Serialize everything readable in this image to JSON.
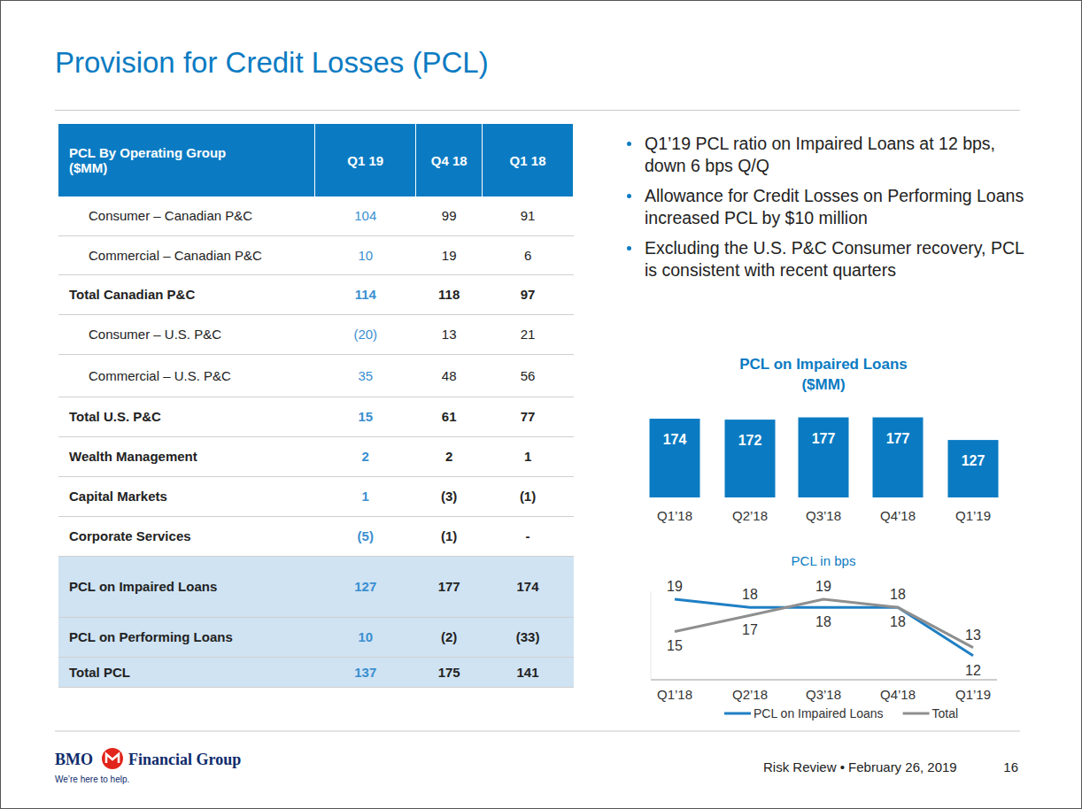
{
  "header": {
    "title": "Provision for Credit Losses (PCL)"
  },
  "table": {
    "header": [
      "PCL By Operating Group ($MM)",
      "Q1 19",
      "Q4 18",
      "Q1 18"
    ],
    "rows": [
      {
        "kind": "item",
        "cells": [
          "Consumer – Canadian P&C",
          "104",
          "99",
          "91"
        ]
      },
      {
        "kind": "item",
        "cells": [
          "Commercial – Canadian P&C",
          "10",
          "19",
          "6"
        ]
      },
      {
        "kind": "total",
        "cells": [
          "Total Canadian P&C",
          "114",
          "118",
          "97"
        ]
      },
      {
        "kind": "item",
        "cells": [
          "Consumer – U.S. P&C",
          "(20)",
          "13",
          "21"
        ]
      },
      {
        "kind": "item",
        "cells": [
          "Commercial – U.S. P&C",
          "35",
          "48",
          "56"
        ]
      },
      {
        "kind": "total",
        "cells": [
          "Total U.S. P&C",
          "15",
          "61",
          "77"
        ]
      },
      {
        "kind": "total",
        "cells": [
          "Wealth Management",
          "2",
          "2",
          "1"
        ]
      },
      {
        "kind": "total",
        "cells": [
          "Capital Markets",
          "1",
          "(3)",
          "(1)"
        ]
      },
      {
        "kind": "total",
        "cells": [
          "Corporate Services",
          "(5)",
          "(1)",
          "-"
        ]
      },
      {
        "kind": "summary",
        "cells": [
          "PCL on Impaired Loans",
          "127",
          "177",
          "174"
        ]
      },
      {
        "kind": "summary",
        "cells": [
          "PCL on Performing Loans",
          "10",
          "(2)",
          "(33)"
        ]
      },
      {
        "kind": "summary",
        "cells": [
          "Total PCL",
          "137",
          "175",
          "141"
        ]
      }
    ]
  },
  "bullets": [
    "Q1’19 PCL ratio on Impaired Loans at 12 bps, down 6 bps Q/Q",
    "Allowance for Credit Losses on Performing Loans increased PCL by $10 million",
    "Excluding the U.S. P&C Consumer recovery, PCL is consistent with recent quarters"
  ],
  "chart_data": [
    {
      "type": "bar",
      "title": "PCL on Impaired Loans",
      "subtitle": "($MM)",
      "categories": [
        "Q1’18",
        "Q2’18",
        "Q3’18",
        "Q4’18",
        "Q1’19"
      ],
      "values": [
        174,
        172,
        177,
        177,
        127
      ],
      "color": "#0a7bc2",
      "ylim": [
        0,
        180
      ],
      "data_labels": true,
      "tick_labels": "x",
      "grid": false
    },
    {
      "type": "line",
      "title": "PCL in bps",
      "categories": [
        "Q1’18",
        "Q2’18",
        "Q3’18",
        "Q4’18",
        "Q1’19"
      ],
      "series": [
        {
          "name": "PCL on Impaired Loans",
          "color": "#1f7fc4",
          "values": [
            19,
            18,
            18,
            18,
            12
          ]
        },
        {
          "name": "Total",
          "color": "#8f8f8f",
          "values": [
            15,
            17,
            19,
            18,
            13
          ]
        }
      ],
      "ylim": [
        9,
        20
      ],
      "data_labels": true,
      "tick_labels": "x",
      "legend": "bottom",
      "grid": false
    }
  ],
  "footer": {
    "logo": "BMO",
    "company": "Financial Group",
    "tagline": "We’re here to help.",
    "event": "Risk Review • February 26, 2019",
    "page": "16"
  }
}
